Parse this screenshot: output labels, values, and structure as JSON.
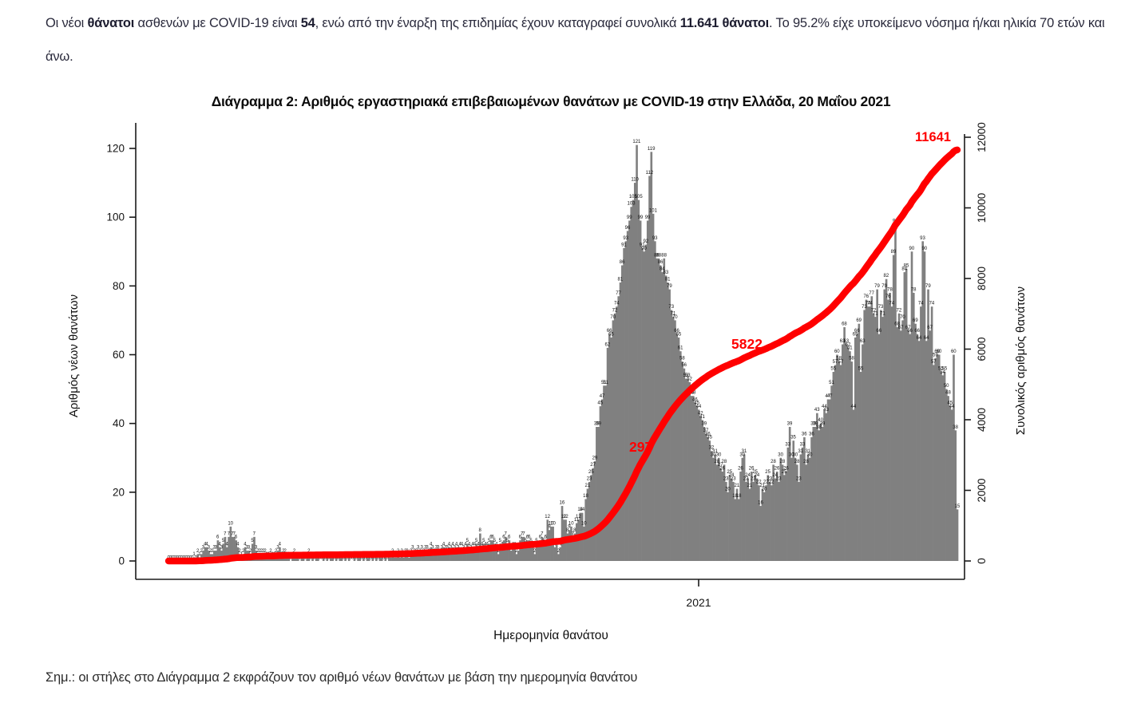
{
  "intro": {
    "segments": [
      {
        "text": "Οι νέοι ",
        "bold": false
      },
      {
        "text": "θάνατοι",
        "bold": true
      },
      {
        "text": " ασθενών με COVID-19 είναι ",
        "bold": false
      },
      {
        "text": "54",
        "bold": true
      },
      {
        "text": ", ενώ από την έναρξη της επιδημίας έχουν καταγραφεί συνολικά ",
        "bold": false
      },
      {
        "text": "11.641 θάνατοι",
        "bold": true
      },
      {
        "text": ".  Το 95.2% είχε υποκείμενο νόσημα ή/και ηλικία 70 ετών και άνω.",
        "bold": false
      }
    ]
  },
  "note": "Σημ.: οι στήλες στο Διάγραμμα 2 εκφράζουν τον αριθμό νέων θανάτων με βάση την ημερομηνία θανάτου",
  "chart_data": {
    "type": "bar",
    "title": "Διάγραμμα 2: Αριθμός εργαστηριακά επιβεβαιωμένων θανάτων με COVID-19 στην Ελλάδα, 20 Μαΐου 2021",
    "xlabel": "Ημερομηνία θανάτου",
    "ylabel_left": "Αριθμός νέων θανάτων",
    "ylabel_right": "Συνολικός αριθμός θανάτων",
    "x_tick_labels": [
      "2021"
    ],
    "yticks_left": [
      0,
      20,
      40,
      60,
      80,
      100,
      120
    ],
    "yticks_right": [
      0,
      2000,
      4000,
      6000,
      8000,
      10000,
      12000
    ],
    "ylim_left": [
      0,
      125
    ],
    "ylim_right": [
      0,
      12500
    ],
    "grid": false,
    "bar_color": "#808080",
    "line_color": "#ff0000",
    "label_color": "#111111",
    "annotations": [
      {
        "text": "297",
        "color": "#ff0000"
      },
      {
        "text": "5822",
        "color": "#ff0000"
      },
      {
        "text": "11641",
        "color": "#ff0000"
      }
    ],
    "series": [
      {
        "name": "Αριθμός νέων θανάτων (ανά ημερομηνία θανάτου)",
        "type": "bar",
        "values": [
          0,
          0,
          0,
          0,
          0,
          0,
          0,
          0,
          0,
          0,
          0,
          0,
          0,
          0,
          1,
          0,
          2,
          1,
          2,
          3,
          4,
          4,
          3,
          2,
          2,
          3,
          3,
          6,
          4,
          3,
          5,
          7,
          4,
          7,
          10,
          7,
          7,
          6,
          4,
          2,
          1,
          2,
          4,
          3,
          3,
          2,
          5,
          7,
          3,
          2,
          2,
          2,
          2,
          2,
          1,
          1,
          2,
          1,
          1,
          2,
          3,
          4,
          1,
          2,
          2,
          1,
          1,
          0,
          1,
          2,
          1,
          1,
          0,
          1,
          1,
          0,
          1,
          2,
          0,
          1,
          0,
          1,
          1,
          0,
          0,
          1,
          0,
          1,
          0,
          1,
          1,
          0,
          1,
          0,
          1,
          1,
          0,
          1,
          0,
          1,
          0,
          0,
          1,
          0,
          1,
          1,
          0,
          1,
          0,
          1,
          1,
          0,
          1,
          0,
          1,
          0,
          1,
          1,
          0,
          1,
          0,
          1,
          1,
          2,
          1,
          1,
          2,
          1,
          2,
          1,
          2,
          2,
          1,
          2,
          3,
          2,
          2,
          3,
          2,
          3,
          2,
          3,
          3,
          2,
          4,
          3,
          2,
          3,
          3,
          2,
          3,
          4,
          3,
          3,
          4,
          3,
          4,
          3,
          4,
          3,
          4,
          4,
          3,
          4,
          5,
          4,
          3,
          4,
          4,
          5,
          4,
          8,
          4,
          5,
          4,
          4,
          5,
          6,
          6,
          5,
          4,
          2,
          5,
          4,
          6,
          7,
          5,
          6,
          3,
          4,
          4,
          2,
          3,
          6,
          7,
          7,
          5,
          6,
          6,
          5,
          4,
          2,
          5,
          4,
          6,
          7,
          5,
          6,
          12,
          9,
          10,
          10,
          4,
          5,
          2,
          4,
          16,
          12,
          12,
          8,
          9,
          10,
          7,
          8,
          11,
          12,
          14,
          14,
          10,
          18,
          21,
          23,
          25,
          27,
          29,
          39,
          39,
          45,
          47,
          51,
          51,
          62,
          66,
          65,
          70,
          72,
          74,
          77,
          81,
          86,
          91,
          93,
          96,
          99,
          103,
          105,
          110,
          121,
          105,
          99,
          91,
          90,
          92,
          99,
          112,
          119,
          101,
          93,
          88,
          88,
          86,
          84,
          88,
          83,
          81,
          79,
          73,
          71,
          70,
          66,
          65,
          61,
          58,
          56,
          53,
          53,
          52,
          48,
          48,
          46,
          45,
          44,
          42,
          41,
          39,
          37,
          36,
          35,
          32,
          30,
          31,
          28,
          30,
          27,
          26,
          28,
          23,
          20,
          25,
          24,
          23,
          18,
          21,
          18,
          26,
          30,
          31,
          23,
          24,
          21,
          26,
          23,
          25,
          24,
          22,
          16,
          21,
          20,
          22,
          25,
          23,
          22,
          28,
          24,
          26,
          23,
          30,
          28,
          25,
          26,
          33,
          39,
          30,
          35,
          30,
          28,
          23,
          31,
          33,
          36,
          28,
          31,
          30,
          36,
          39,
          39,
          43,
          38,
          40,
          39,
          44,
          43,
          47,
          47,
          51,
          55,
          57,
          60,
          58,
          57,
          63,
          68,
          63,
          62,
          61,
          58,
          44,
          65,
          66,
          69,
          55,
          63,
          73,
          76,
          74,
          74,
          77,
          72,
          71,
          79,
          66,
          73,
          71,
          79,
          82,
          76,
          78,
          74,
          89,
          98,
          68,
          72,
          67,
          70,
          84,
          85,
          67,
          66,
          90,
          78,
          69,
          66,
          64,
          74,
          93,
          90,
          64,
          79,
          67,
          74,
          57,
          59,
          60,
          60,
          55,
          54,
          55,
          50,
          48,
          45,
          44,
          60,
          38,
          15
        ]
      },
      {
        "name": "Συνολικός αριθμός θανάτων (αθροιστική καμπύλη)",
        "type": "line",
        "cumulative_of_bars": true,
        "final_value": 11641
      }
    ]
  }
}
